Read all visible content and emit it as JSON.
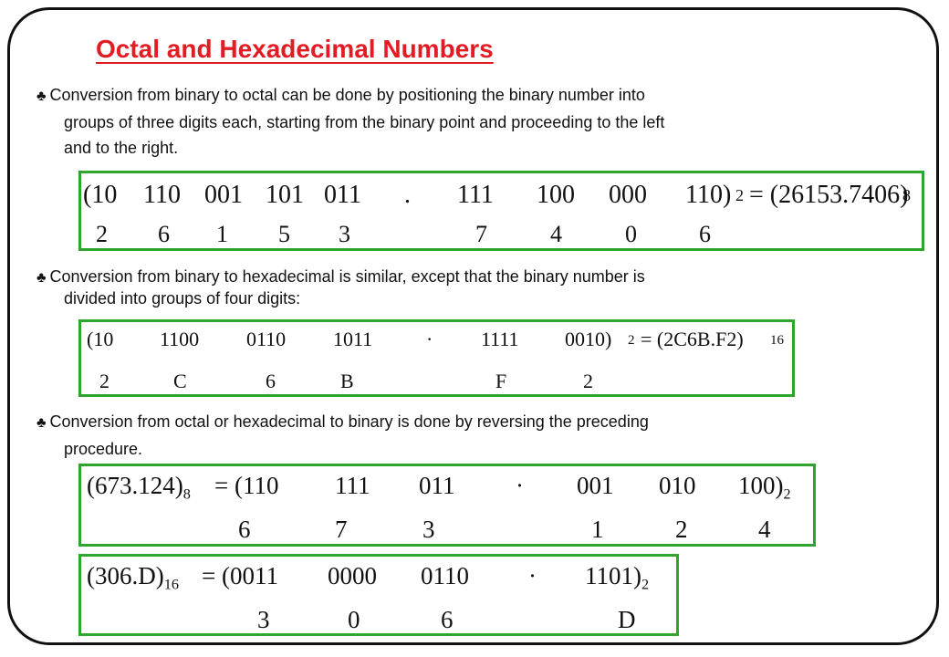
{
  "slide": {
    "title": "Octal and Hexadecimal Numbers",
    "bullet_symbol": "♣",
    "paragraphs": [
      {
        "lines": [
          "Conversion from binary to octal can be done by positioning the binary number into",
          "groups of three digits each, starting from the binary point and proceeding to the left",
          "and to the right."
        ]
      },
      {
        "lines": [
          "Conversion from binary to hexadecimal is similar, except that the binary number is",
          "divided into groups of four digits:"
        ]
      },
      {
        "lines": [
          "Conversion from octal or hexadecimal to binary is done by reversing the preceding",
          "procedure."
        ]
      }
    ],
    "examples": {
      "octal": {
        "groups": [
          "(10",
          "110",
          "001",
          "101",
          "011",
          ".",
          "111",
          "100",
          "000",
          "110)"
        ],
        "base_in": "2",
        "equals": "= (26153.7406)",
        "base_out": "8",
        "digits": [
          "2",
          "6",
          "1",
          "5",
          "3",
          "7",
          "4",
          "0",
          "6"
        ]
      },
      "hex": {
        "groups": [
          "(10",
          "1100",
          "0110",
          "1011",
          "·",
          "1111",
          "0010)"
        ],
        "base_in": "2",
        "equals": "= (2C6B.F2)",
        "base_out": "16",
        "digits": [
          "2",
          "C",
          "6",
          "B",
          "F",
          "2"
        ]
      },
      "octal_to_binary": {
        "lhs": "(673.124)",
        "lhs_base": "8",
        "groups": [
          "= (110",
          "111",
          "011",
          "·",
          "001",
          "010",
          "100)"
        ],
        "base_out": "2",
        "digits": [
          "6",
          "7",
          "3",
          "1",
          "2",
          "4"
        ]
      },
      "hex_to_binary": {
        "lhs": "(306.D)",
        "lhs_base": "16",
        "groups": [
          "= (0011",
          "0000",
          "0110",
          "·",
          "1101)"
        ],
        "base_out": "2",
        "digits": [
          "3",
          "0",
          "6",
          "D"
        ]
      }
    }
  }
}
